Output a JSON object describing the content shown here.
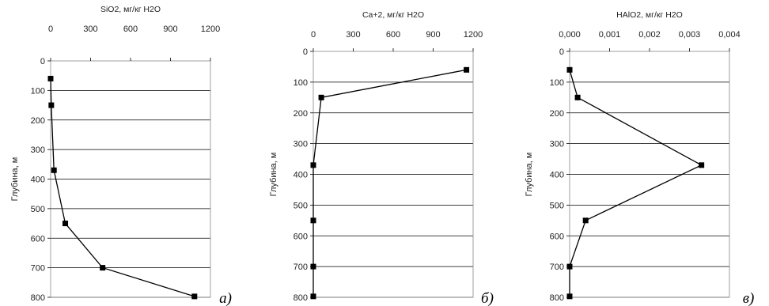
{
  "chart_data": [
    {
      "type": "line",
      "title": "SiO2, мг/кг H2O",
      "xlabel": "",
      "ylabel": "Глубина, м",
      "panel_label": "а)",
      "xlim": [
        0,
        1200
      ],
      "ylim": [
        0,
        800
      ],
      "y_inverted": true,
      "x_axis_position": "top",
      "grid": "horizontal",
      "x_ticks": [
        "0",
        "300",
        "600",
        "900",
        "1200"
      ],
      "y_ticks": [
        "0",
        "100",
        "200",
        "300",
        "400",
        "500",
        "600",
        "700",
        "800"
      ],
      "series": [
        {
          "x": [
            0,
            5,
            25,
            110,
            390,
            1080
          ],
          "y": [
            60,
            150,
            370,
            550,
            700,
            797
          ]
        }
      ]
    },
    {
      "type": "line",
      "title": "Ca+2, мг/кг H2O",
      "xlabel": "",
      "ylabel": "Глубина, м",
      "panel_label": "б)",
      "xlim": [
        0,
        1200
      ],
      "ylim": [
        0,
        800
      ],
      "y_inverted": true,
      "x_axis_position": "top",
      "grid": "horizontal",
      "x_ticks": [
        "0",
        "300",
        "600",
        "900",
        "1200"
      ],
      "y_ticks": [
        "0",
        "100",
        "200",
        "300",
        "400",
        "500",
        "600",
        "700",
        "800"
      ],
      "series": [
        {
          "x": [
            1150,
            60,
            0,
            0,
            0,
            0
          ],
          "y": [
            60,
            150,
            370,
            550,
            700,
            797
          ]
        }
      ]
    },
    {
      "type": "line",
      "title": "HAlO2, мг/кг H2O",
      "xlabel": "",
      "ylabel": "Глубина, м",
      "panel_label": "в)",
      "xlim": [
        0,
        0.004
      ],
      "ylim": [
        0,
        800
      ],
      "y_inverted": true,
      "x_axis_position": "top",
      "grid": "horizontal",
      "x_ticks": [
        "0,000",
        "0,001",
        "0,002",
        "0,003",
        "0,004"
      ],
      "y_ticks": [
        "0",
        "100",
        "200",
        "300",
        "400",
        "500",
        "600",
        "700",
        "800"
      ],
      "series": [
        {
          "x": [
            0.0,
            0.0002,
            0.0033,
            0.0004,
            0.0,
            0.0
          ],
          "y": [
            60,
            150,
            370,
            550,
            700,
            797
          ]
        }
      ]
    }
  ]
}
